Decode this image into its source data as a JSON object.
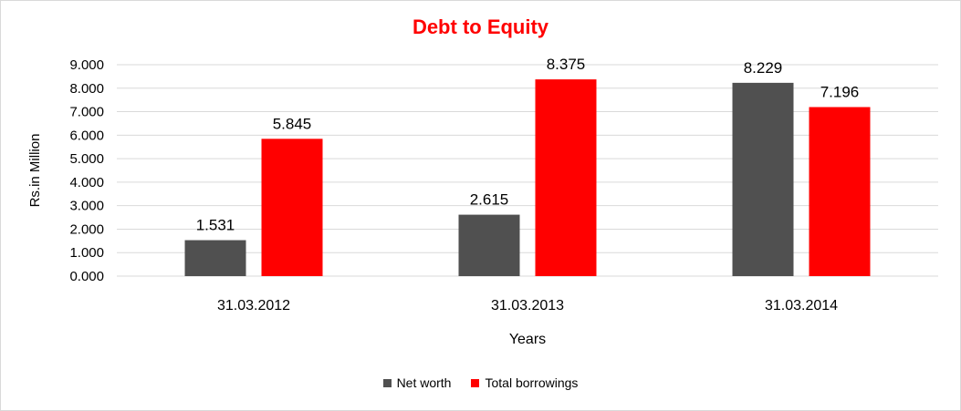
{
  "chart_data": {
    "type": "bar",
    "title": "Debt to Equity",
    "xlabel": "Years",
    "ylabel": "Rs.in Million",
    "categories": [
      "31.03.2012",
      "31.03.2013",
      "31.03.2014"
    ],
    "series": [
      {
        "name": "Net worth",
        "values": [
          1.531,
          2.615,
          8.229
        ],
        "labels": [
          "1.531",
          "2.615",
          "8.229"
        ],
        "color": "#505050"
      },
      {
        "name": "Total borrowings",
        "values": [
          5.845,
          8.375,
          7.196
        ],
        "labels": [
          "5.845",
          "8.375",
          "7.196"
        ],
        "color": "#ff0000"
      }
    ],
    "ylim": [
      0,
      9
    ],
    "yticks": [
      "0.000",
      "1.000",
      "2.000",
      "3.000",
      "4.000",
      "5.000",
      "6.000",
      "7.000",
      "8.000",
      "9.000"
    ],
    "grid": true,
    "legend_position": "bottom"
  }
}
